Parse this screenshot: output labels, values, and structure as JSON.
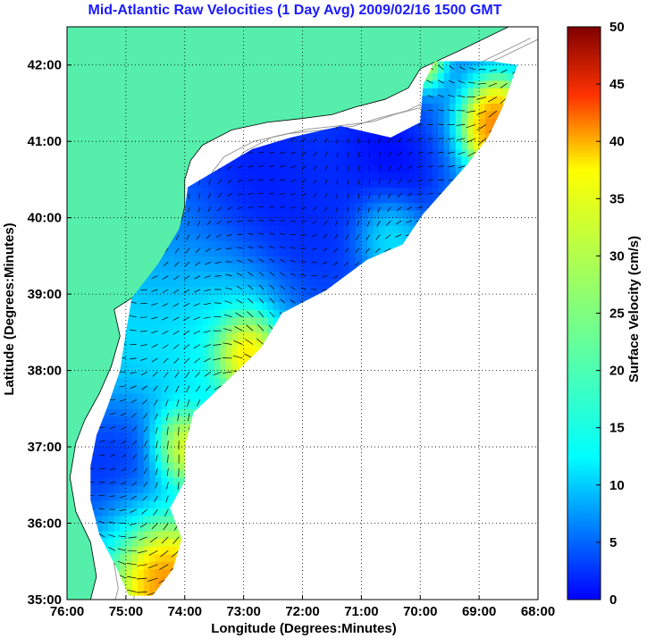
{
  "chart_data": {
    "type": "heatmap",
    "title": "Mid-Atlantic Raw Velocities (1 Day Avg) 2009/02/16 1500 GMT",
    "xlabel": "Longitude (Degrees:Minutes)",
    "ylabel": "Latitude (Degrees:Minutes)",
    "xlim": [
      -76,
      -68
    ],
    "ylim": [
      35,
      42.5
    ],
    "x_ticks": [
      {
        "value": -76,
        "label": "76:00"
      },
      {
        "value": -75,
        "label": "75:00"
      },
      {
        "value": -74,
        "label": "74:00"
      },
      {
        "value": -73,
        "label": "73:00"
      },
      {
        "value": -72,
        "label": "72:00"
      },
      {
        "value": -71,
        "label": "71:00"
      },
      {
        "value": -70,
        "label": "70:00"
      },
      {
        "value": -69,
        "label": "69:00"
      },
      {
        "value": -68,
        "label": "68:00"
      }
    ],
    "y_ticks": [
      {
        "value": 35,
        "label": "35:00"
      },
      {
        "value": 36,
        "label": "36:00"
      },
      {
        "value": 37,
        "label": "37:00"
      },
      {
        "value": 38,
        "label": "38:00"
      },
      {
        "value": 39,
        "label": "39:00"
      },
      {
        "value": 40,
        "label": "40:00"
      },
      {
        "value": 41,
        "label": "41:00"
      },
      {
        "value": 42,
        "label": "42:00"
      }
    ],
    "grid": true,
    "colorbar": {
      "label": "Surface Velocity (cm/s)",
      "range": [
        0,
        50
      ],
      "ticks": [
        "0",
        "5",
        "10",
        "15",
        "20",
        "25",
        "30",
        "35",
        "40",
        "45",
        "50"
      ],
      "colormap": "jet"
    },
    "land_color": "#55eeaa",
    "coverage_polygon_lonlat": [
      [
        -74.55,
        35.05
      ],
      [
        -74.2,
        35.4
      ],
      [
        -74.05,
        35.8
      ],
      [
        -74.25,
        36.2
      ],
      [
        -74.0,
        36.55
      ],
      [
        -74.0,
        37.0
      ],
      [
        -73.85,
        37.45
      ],
      [
        -73.3,
        37.85
      ],
      [
        -72.7,
        38.3
      ],
      [
        -72.35,
        38.75
      ],
      [
        -71.6,
        39.05
      ],
      [
        -70.9,
        39.45
      ],
      [
        -70.3,
        39.65
      ],
      [
        -69.95,
        40.05
      ],
      [
        -69.2,
        40.7
      ],
      [
        -68.85,
        41.05
      ],
      [
        -68.6,
        41.45
      ],
      [
        -68.35,
        42.0
      ],
      [
        -68.8,
        42.05
      ],
      [
        -69.75,
        42.05
      ],
      [
        -69.95,
        41.75
      ],
      [
        -70.0,
        41.25
      ],
      [
        -70.5,
        41.05
      ],
      [
        -71.35,
        41.2
      ],
      [
        -72.2,
        41.05
      ],
      [
        -72.85,
        40.9
      ],
      [
        -73.4,
        40.65
      ],
      [
        -73.95,
        40.4
      ],
      [
        -74.0,
        40.1
      ],
      [
        -74.1,
        39.85
      ],
      [
        -74.45,
        39.4
      ],
      [
        -74.9,
        38.95
      ],
      [
        -75.0,
        38.5
      ],
      [
        -75.1,
        38.0
      ],
      [
        -75.3,
        37.55
      ],
      [
        -75.5,
        37.15
      ],
      [
        -75.6,
        36.75
      ],
      [
        -75.6,
        36.3
      ],
      [
        -75.45,
        35.85
      ],
      [
        -75.15,
        35.4
      ],
      [
        -74.95,
        35.05
      ]
    ],
    "speed_regions": [
      {
        "lon": -73.0,
        "lat": 40.2,
        "radius": 0.9,
        "speed": 6
      },
      {
        "lon": -71.5,
        "lat": 40.2,
        "radius": 0.8,
        "speed": 8
      },
      {
        "lon": -70.5,
        "lat": 40.9,
        "radius": 0.5,
        "speed": 5
      },
      {
        "lon": -69.5,
        "lat": 41.6,
        "radius": 0.5,
        "speed": 12
      },
      {
        "lon": -74.2,
        "lat": 39.6,
        "radius": 0.7,
        "speed": 14
      },
      {
        "lon": -74.5,
        "lat": 38.3,
        "radius": 0.8,
        "speed": 18
      },
      {
        "lon": -73.3,
        "lat": 38.7,
        "radius": 0.6,
        "speed": 22
      },
      {
        "lon": -75.0,
        "lat": 36.8,
        "radius": 0.6,
        "speed": 6
      },
      {
        "lon": -74.6,
        "lat": 35.8,
        "radius": 0.5,
        "speed": 24
      },
      {
        "lon": -70.6,
        "lat": 39.8,
        "radius": 0.3,
        "speed": 22
      },
      {
        "lon": -73.0,
        "lat": 38.3,
        "radius": 0.3,
        "speed": 46
      },
      {
        "lon": -74.1,
        "lat": 37.0,
        "radius": 0.3,
        "speed": 40
      },
      {
        "lon": -74.4,
        "lat": 35.4,
        "radius": 0.35,
        "speed": 47
      },
      {
        "lon": -68.9,
        "lat": 41.3,
        "radius": 0.3,
        "speed": 48
      },
      {
        "lon": -69.9,
        "lat": 42.0,
        "radius": 0.2,
        "speed": 40
      }
    ]
  }
}
